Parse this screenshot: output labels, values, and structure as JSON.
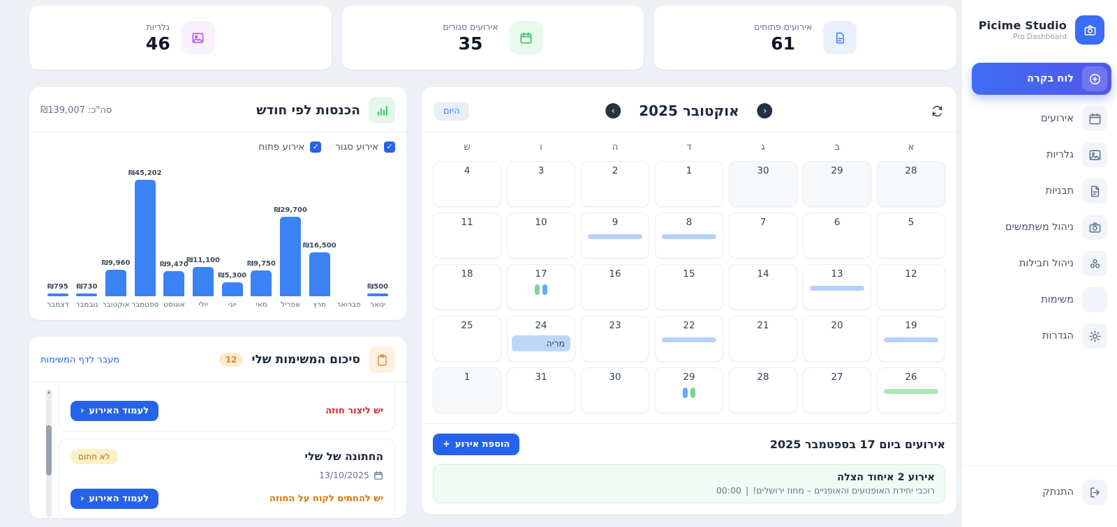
{
  "app": {
    "name": "Picime Studio",
    "subtitle": "Pro Dashboard",
    "logo_icon": "camera-icon",
    "brand_color": "#3b6df6"
  },
  "sidebar": {
    "active_item": {
      "label": "לוח בקרה",
      "icon": "circle-plus-icon"
    },
    "items": [
      {
        "label": "אירועים",
        "icon": "calendar-icon"
      },
      {
        "label": "גלריות",
        "icon": "image-icon"
      },
      {
        "label": "תבניות",
        "icon": "template-icon"
      },
      {
        "label": "ניהול משתמשים",
        "icon": "camera-icon"
      },
      {
        "label": "ניהול חבילות",
        "icon": "package-icon"
      },
      {
        "label": "משימות",
        "icon": "checklist-icon"
      },
      {
        "label": "הגדרות",
        "icon": "gear-icon"
      }
    ],
    "logout": {
      "label": "התנתק",
      "icon": "logout-icon"
    }
  },
  "stats": [
    {
      "label": "אירועים פתוחים",
      "value": "61",
      "icon": "document-icon",
      "color": "#3b82f6",
      "bg": "#e9f1fd"
    },
    {
      "label": "אירועים סגורים",
      "value": "35",
      "icon": "calendar-icon",
      "color": "#22c55e",
      "bg": "#e9f9ee"
    },
    {
      "label": "גלריות",
      "value": "46",
      "icon": "image-icon",
      "color": "#a855f7",
      "bg": "#f9f1fd"
    }
  ],
  "chart_card": {
    "title": "הכנסות לפי חודש",
    "icon": "bar-chart-icon",
    "total_label": "סה\"כ: ₪139,007",
    "legend": [
      {
        "label": "אירוע סגור",
        "checked": true
      },
      {
        "label": "אירוע פתוח",
        "checked": true
      }
    ]
  },
  "chart_data": {
    "type": "bar",
    "title": "הכנסות לפי חודש",
    "categories": [
      "ינואר",
      "פברואר",
      "מרץ",
      "אפריל",
      "מאי",
      "יוני",
      "יולי",
      "אוגוסט",
      "ספטמבר",
      "אוקטובר",
      "נובמבר",
      "דצמבר"
    ],
    "values": [
      500,
      0,
      16500,
      29700,
      9750,
      5300,
      11100,
      9470,
      45202,
      9960,
      730,
      795
    ],
    "value_labels": [
      "₪500",
      "",
      "₪16,500",
      "₪29,700",
      "₪9,750",
      "₪5,300",
      "₪11,100",
      "₪9,470",
      "₪45,202",
      "₪9,960",
      "₪730",
      "₪795"
    ],
    "total": 139007,
    "currency": "₪",
    "bar_color": "#3b82f6",
    "ylim": [
      0,
      45202
    ],
    "grid": false,
    "direction": "rtl"
  },
  "calendar": {
    "title": "אוקטובר 2025",
    "today_button": "היום",
    "prev_glyph": "‹",
    "next_glyph": "›",
    "weekdays": [
      "א",
      "ב",
      "ג",
      "ד",
      "ה",
      "ו",
      "ש"
    ],
    "weeks": [
      [
        {
          "d": "28",
          "out": true
        },
        {
          "d": "29",
          "out": true
        },
        {
          "d": "30",
          "out": true
        },
        {
          "d": "1"
        },
        {
          "d": "2"
        },
        {
          "d": "3"
        },
        {
          "d": "4"
        }
      ],
      [
        {
          "d": "5"
        },
        {
          "d": "6"
        },
        {
          "d": "7"
        },
        {
          "d": "8",
          "bar": "blue"
        },
        {
          "d": "9",
          "bar": "blue"
        },
        {
          "d": "10"
        },
        {
          "d": "11"
        }
      ],
      [
        {
          "d": "12"
        },
        {
          "d": "13",
          "bar": "blue"
        },
        {
          "d": "14"
        },
        {
          "d": "15"
        },
        {
          "d": "16"
        },
        {
          "d": "17",
          "dots": [
            "green",
            "blue"
          ]
        },
        {
          "d": "18"
        }
      ],
      [
        {
          "d": "19",
          "bar": "blue"
        },
        {
          "d": "20"
        },
        {
          "d": "21"
        },
        {
          "d": "22",
          "bar": "blue"
        },
        {
          "d": "23"
        },
        {
          "d": "24",
          "label": "מריה"
        },
        {
          "d": "25"
        }
      ],
      [
        {
          "d": "26",
          "bar": "green"
        },
        {
          "d": "27"
        },
        {
          "d": "28"
        },
        {
          "d": "29",
          "dots": [
            "blue",
            "green"
          ]
        },
        {
          "d": "30"
        },
        {
          "d": "31"
        },
        {
          "d": "1",
          "out": true
        }
      ]
    ]
  },
  "events_section": {
    "heading": "אירועים ביום 17 בספטמבר 2025",
    "add_button": "הוספת אירוע",
    "events": [
      {
        "title": "אירוע 2 איחוד הצלה",
        "time": "00:00",
        "separator": "|",
        "description": "רוכבי יחידת האופנועים והאופניים – מחוז ירושלים!"
      }
    ]
  },
  "tasks_card": {
    "title": "סיכום המשימות שלי",
    "count_badge": "12",
    "link": "מעבר לדף המשימות",
    "icon": "clipboard-icon",
    "button_chevron": "‹",
    "items": [
      {
        "note": "יש ליצור חוזה",
        "note_color": "red",
        "button": "לעמוד האירוע",
        "partial": true
      },
      {
        "title": "החתונה של שלי",
        "badge": "לא חתום",
        "date": "13/10/2025",
        "note": "יש להחתים לקוח על החוזה",
        "note_color": "orange",
        "button": "לעמוד האירוע"
      }
    ]
  }
}
